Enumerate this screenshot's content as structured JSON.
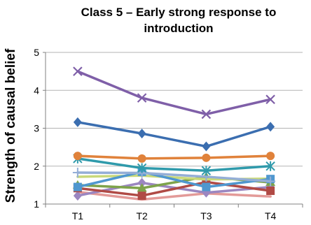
{
  "chart_data": {
    "type": "line",
    "title": "Class 5 – Early strong response to introduction",
    "xlabel": "",
    "ylabel": "Strength of causal belief",
    "categories": [
      "T1",
      "T2",
      "T3",
      "T4"
    ],
    "ylim": [
      1,
      5
    ],
    "yticks": [
      1,
      2,
      3,
      4,
      5
    ],
    "grid": true,
    "legend": "none",
    "series": [
      {
        "color": "#7f5fa8",
        "marker": "star",
        "values": [
          4.5,
          3.8,
          3.37,
          3.76
        ]
      },
      {
        "color": "#3b6eb0",
        "marker": "diamond",
        "values": [
          3.16,
          2.86,
          2.52,
          3.04
        ]
      },
      {
        "color": "#e0823b",
        "marker": "circle",
        "values": [
          2.27,
          2.2,
          2.22,
          2.27
        ]
      },
      {
        "color": "#2f9aab",
        "marker": "asterisk",
        "values": [
          2.2,
          1.95,
          1.88,
          2.0
        ]
      },
      {
        "color": "#94aed6",
        "marker": "plus",
        "values": [
          1.83,
          1.82,
          1.72,
          1.6
        ]
      },
      {
        "color": "#4f97cf",
        "marker": "square",
        "values": [
          1.45,
          1.85,
          1.45,
          1.66
        ]
      },
      {
        "color": "#c9d97a",
        "marker": "none",
        "values": [
          1.72,
          1.75,
          1.65,
          1.67
        ]
      },
      {
        "color": "#7ea34b",
        "marker": "triangle",
        "values": [
          1.5,
          1.42,
          1.72,
          1.57
        ]
      },
      {
        "color": "#b04a45",
        "marker": "square",
        "values": [
          1.42,
          1.22,
          1.58,
          1.35
        ]
      },
      {
        "color": "#9b86c0",
        "marker": "diamond",
        "values": [
          1.22,
          1.56,
          1.3,
          1.45
        ]
      },
      {
        "color": "#e39a98",
        "marker": "none",
        "values": [
          1.32,
          1.12,
          1.28,
          1.2
        ]
      }
    ]
  }
}
